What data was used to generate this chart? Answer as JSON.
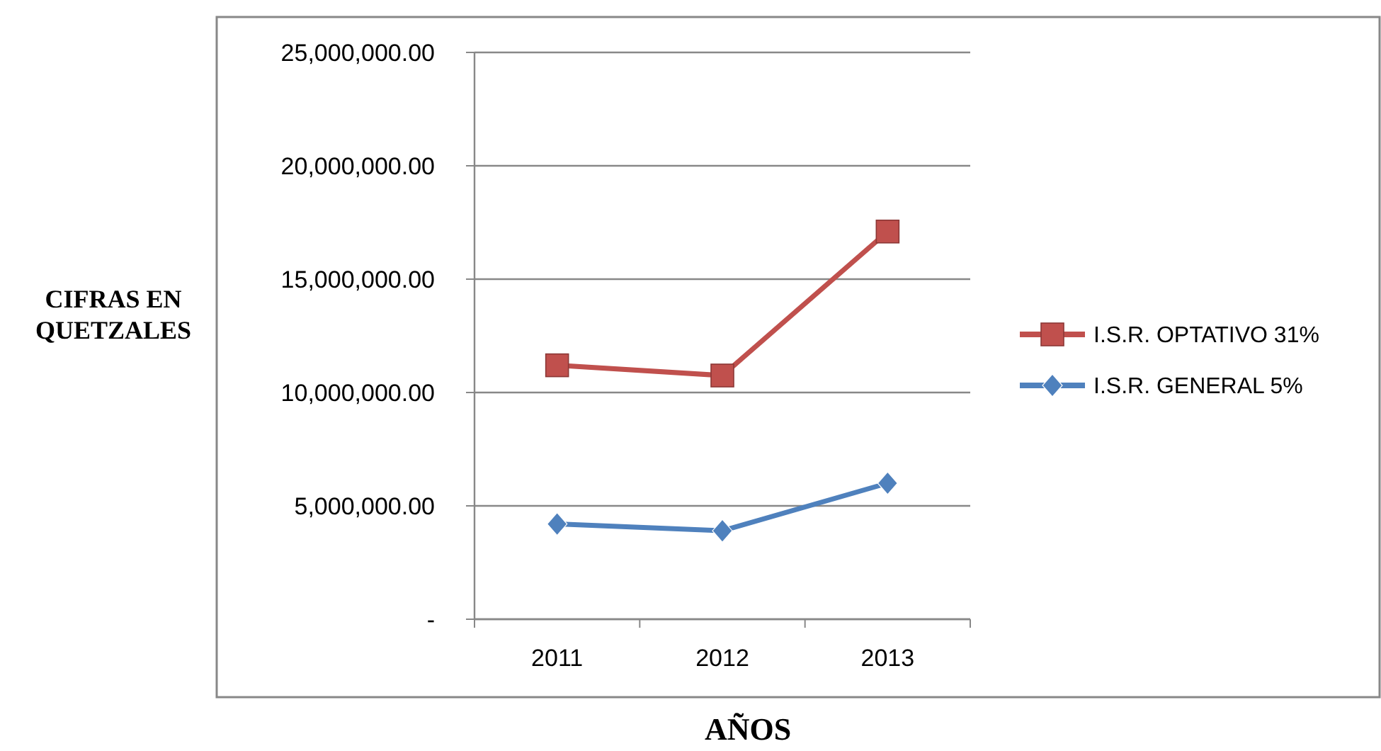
{
  "chart_data": {
    "type": "line",
    "xlabel": "AÑOS",
    "ylabel": "CIFRAS EN QUETZALES",
    "categories": [
      "2011",
      "2012",
      "2013"
    ],
    "series": [
      {
        "name": "I.S.R. OPTATIVO 31%",
        "color": "#c0504d",
        "marker": "square",
        "values": [
          11200000,
          10750000,
          17100000
        ]
      },
      {
        "name": "I.S.R. GENERAL 5%",
        "color": "#4f81bd",
        "marker": "diamond",
        "values": [
          4200000,
          3900000,
          6000000
        ]
      }
    ],
    "ylim": [
      0,
      25000000
    ],
    "yticks": [
      {
        "value": 0,
        "label": "-"
      },
      {
        "value": 5000000,
        "label": "5,000,000.00"
      },
      {
        "value": 10000000,
        "label": "10,000,000.00"
      },
      {
        "value": 15000000,
        "label": "15,000,000.00"
      },
      {
        "value": 20000000,
        "label": "20,000,000.00"
      },
      {
        "value": 25000000,
        "label": "25,000,000.00"
      }
    ],
    "grid": "y",
    "legend": "right"
  }
}
